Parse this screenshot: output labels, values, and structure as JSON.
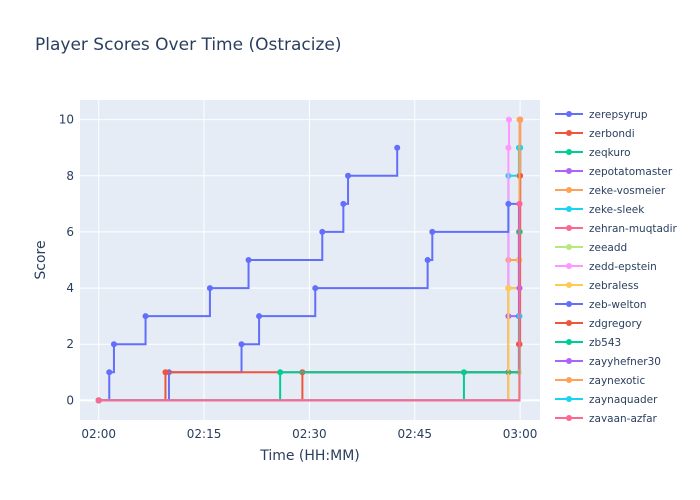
{
  "chart_data": {
    "type": "line",
    "line_shape": "step",
    "title": "Player Scores Over Time (Ostracize)",
    "xlabel": "Time (HH:MM)",
    "ylabel": "Score",
    "x_range": [
      "01:57:20",
      "03:02:50"
    ],
    "x_ticks": [
      "02:00",
      "02:15",
      "02:30",
      "02:45",
      "03:00"
    ],
    "ylim": [
      -0.7,
      10.7
    ],
    "y_ticks": [
      0,
      2,
      4,
      6,
      8,
      10
    ],
    "grid": true,
    "legend_placement": "right",
    "background_color": "#e5ecf6",
    "series": [
      {
        "name": "zerepsyrup",
        "color": "#636efa",
        "points": [
          [
            "02:00:00",
            0
          ],
          [
            "02:01:30",
            1
          ],
          [
            "02:02:10",
            2
          ],
          [
            "02:06:40",
            3
          ],
          [
            "02:15:50",
            4
          ],
          [
            "02:21:20",
            5
          ],
          [
            "02:31:50",
            6
          ],
          [
            "02:34:50",
            7
          ],
          [
            "02:35:30",
            8
          ],
          [
            "02:42:30",
            9
          ]
        ]
      },
      {
        "name": "zerbondi",
        "color": "#ef553b",
        "points": [
          [
            "02:00:00",
            0
          ],
          [
            "02:29:00",
            1
          ],
          [
            "02:58:20",
            1
          ],
          [
            "02:59:50",
            2
          ],
          [
            "02:59:55",
            8
          ],
          [
            "03:00:00",
            10
          ]
        ]
      },
      {
        "name": "zeqkuro",
        "color": "#00cc96",
        "points": [
          [
            "02:00:00",
            0
          ],
          [
            "02:52:00",
            1
          ],
          [
            "02:59:50",
            3
          ],
          [
            "02:59:55",
            6
          ],
          [
            "03:00:00",
            9
          ]
        ]
      },
      {
        "name": "zepotatomaster",
        "color": "#ab63fa",
        "points": [
          [
            "02:00:00",
            0
          ],
          [
            "02:58:20",
            3
          ],
          [
            "02:59:55",
            7
          ],
          [
            "03:00:00",
            10
          ]
        ]
      },
      {
        "name": "zeke-vosmeier",
        "color": "#ffa15a",
        "points": [
          [
            "02:00:00",
            0
          ],
          [
            "02:58:20",
            5
          ],
          [
            "02:59:50",
            5
          ],
          [
            "03:00:00",
            10
          ]
        ]
      },
      {
        "name": "zeke-sleek",
        "color": "#19d3f3",
        "points": [
          [
            "02:00:00",
            0
          ],
          [
            "02:58:20",
            8
          ],
          [
            "02:59:50",
            9
          ],
          [
            "03:00:00",
            9
          ]
        ]
      },
      {
        "name": "zehran-muqtadir",
        "color": "#ff6692",
        "points": [
          [
            "02:00:00",
            0
          ],
          [
            "02:58:20",
            4
          ],
          [
            "02:59:50",
            6
          ]
        ]
      },
      {
        "name": "zeeadd",
        "color": "#b6e880",
        "points": [
          [
            "02:00:00",
            0
          ],
          [
            "02:59:50",
            1
          ],
          [
            "03:00:00",
            6
          ]
        ]
      },
      {
        "name": "zedd-epstein",
        "color": "#ff97ff",
        "points": [
          [
            "02:00:00",
            0
          ],
          [
            "02:58:20",
            9
          ],
          [
            "02:58:25",
            10
          ]
        ]
      },
      {
        "name": "zebraless",
        "color": "#fecb52",
        "points": [
          [
            "02:00:00",
            0
          ],
          [
            "02:58:20",
            4
          ],
          [
            "02:59:55",
            5
          ]
        ]
      },
      {
        "name": "zeb-welton",
        "color": "#636efa",
        "points": [
          [
            "02:00:00",
            0
          ],
          [
            "02:10:00",
            1
          ],
          [
            "02:20:20",
            2
          ],
          [
            "02:22:50",
            3
          ],
          [
            "02:30:50",
            4
          ],
          [
            "02:46:50",
            5
          ],
          [
            "02:47:30",
            6
          ],
          [
            "02:58:20",
            7
          ],
          [
            "02:59:50",
            3
          ]
        ]
      },
      {
        "name": "zdgregory",
        "color": "#ef553b",
        "points": [
          [
            "02:00:00",
            0
          ],
          [
            "02:09:30",
            1
          ],
          [
            "02:59:55",
            2
          ],
          [
            "03:00:00",
            8
          ]
        ]
      },
      {
        "name": "zb543",
        "color": "#00cc96",
        "points": [
          [
            "02:00:00",
            0
          ],
          [
            "02:25:50",
            1
          ],
          [
            "02:59:55",
            6
          ]
        ]
      },
      {
        "name": "zayyhefner30",
        "color": "#ab63fa",
        "points": [
          [
            "02:00:00",
            0
          ],
          [
            "02:59:55",
            4
          ]
        ]
      },
      {
        "name": "zaynexotic",
        "color": "#ffa15a",
        "points": [
          [
            "02:00:00",
            0
          ],
          [
            "02:59:55",
            10
          ]
        ]
      },
      {
        "name": "zaynaquader",
        "color": "#19d3f3",
        "points": [
          [
            "02:00:00",
            0
          ],
          [
            "02:59:55",
            3
          ]
        ]
      },
      {
        "name": "zayaan-azfar",
        "color": "#ff6692",
        "points": [
          [
            "02:00:00",
            0
          ],
          [
            "02:59:55",
            7
          ]
        ]
      }
    ]
  }
}
